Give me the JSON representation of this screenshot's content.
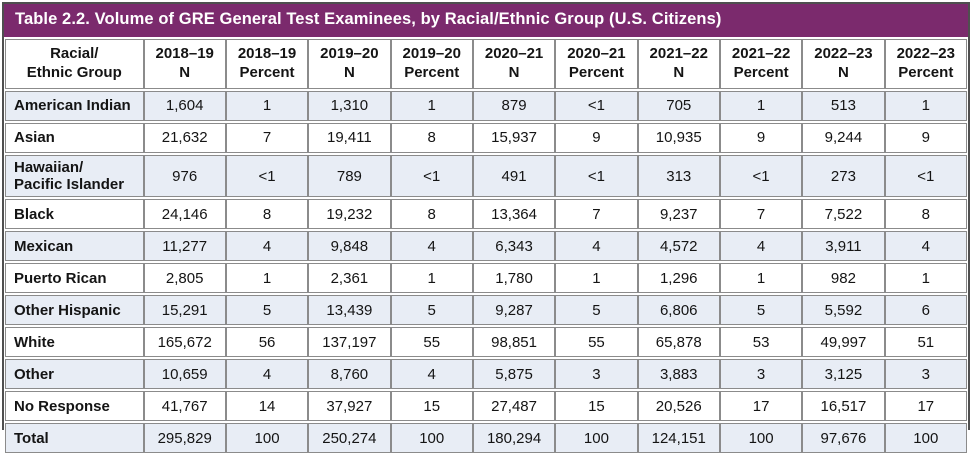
{
  "colors": {
    "title_bar_background": "#7b2a6d",
    "title_text": "#ffffff",
    "alt_row_background": "#e8edf5",
    "cell_border": "#8b8b8b",
    "outer_border": "#4f4f4f"
  },
  "table": {
    "title": "Table 2.2. Volume of GRE General Test Examinees, by Racial/Ethnic Group (U.S. Citizens)",
    "columns": [
      {
        "line1": "Racial/",
        "line2": "Ethnic Group"
      },
      {
        "line1": "2018–19",
        "line2": "N"
      },
      {
        "line1": "2018–19",
        "line2": "Percent"
      },
      {
        "line1": "2019–20",
        "line2": "N"
      },
      {
        "line1": "2019–20",
        "line2": "Percent"
      },
      {
        "line1": "2020–21",
        "line2": "N"
      },
      {
        "line1": "2020–21",
        "line2": "Percent"
      },
      {
        "line1": "2021–22",
        "line2": "N"
      },
      {
        "line1": "2021–22",
        "line2": "Percent"
      },
      {
        "line1": "2022–23",
        "line2": "N"
      },
      {
        "line1": "2022–23",
        "line2": "Percent"
      }
    ],
    "rows": [
      {
        "group": "American Indian",
        "values": [
          "1,604",
          "1",
          "1,310",
          "1",
          "879",
          "<1",
          "705",
          "1",
          "513",
          "1"
        ]
      },
      {
        "group": "Asian",
        "values": [
          "21,632",
          "7",
          "19,411",
          "8",
          "15,937",
          "9",
          "10,935",
          "9",
          "9,244",
          "9"
        ]
      },
      {
        "group": "Hawaiian/\nPacific Islander",
        "values": [
          "976",
          "<1",
          "789",
          "<1",
          "491",
          "<1",
          "313",
          "<1",
          "273",
          "<1"
        ]
      },
      {
        "group": "Black",
        "values": [
          "24,146",
          "8",
          "19,232",
          "8",
          "13,364",
          "7",
          "9,237",
          "7",
          "7,522",
          "8"
        ]
      },
      {
        "group": "Mexican",
        "values": [
          "11,277",
          "4",
          "9,848",
          "4",
          "6,343",
          "4",
          "4,572",
          "4",
          "3,911",
          "4"
        ]
      },
      {
        "group": "Puerto Rican",
        "values": [
          "2,805",
          "1",
          "2,361",
          "1",
          "1,780",
          "1",
          "1,296",
          "1",
          "982",
          "1"
        ]
      },
      {
        "group": "Other Hispanic",
        "values": [
          "15,291",
          "5",
          "13,439",
          "5",
          "9,287",
          "5",
          "6,806",
          "5",
          "5,592",
          "6"
        ]
      },
      {
        "group": "White",
        "values": [
          "165,672",
          "56",
          "137,197",
          "55",
          "98,851",
          "55",
          "65,878",
          "53",
          "49,997",
          "51"
        ]
      },
      {
        "group": "Other",
        "values": [
          "10,659",
          "4",
          "8,760",
          "4",
          "5,875",
          "3",
          "3,883",
          "3",
          "3,125",
          "3"
        ]
      },
      {
        "group": "No Response",
        "values": [
          "41,767",
          "14",
          "37,927",
          "15",
          "27,487",
          "15",
          "20,526",
          "17",
          "16,517",
          "17"
        ]
      },
      {
        "group": "Total",
        "values": [
          "295,829",
          "100",
          "250,274",
          "100",
          "180,294",
          "100",
          "124,151",
          "100",
          "97,676",
          "100"
        ]
      }
    ]
  }
}
